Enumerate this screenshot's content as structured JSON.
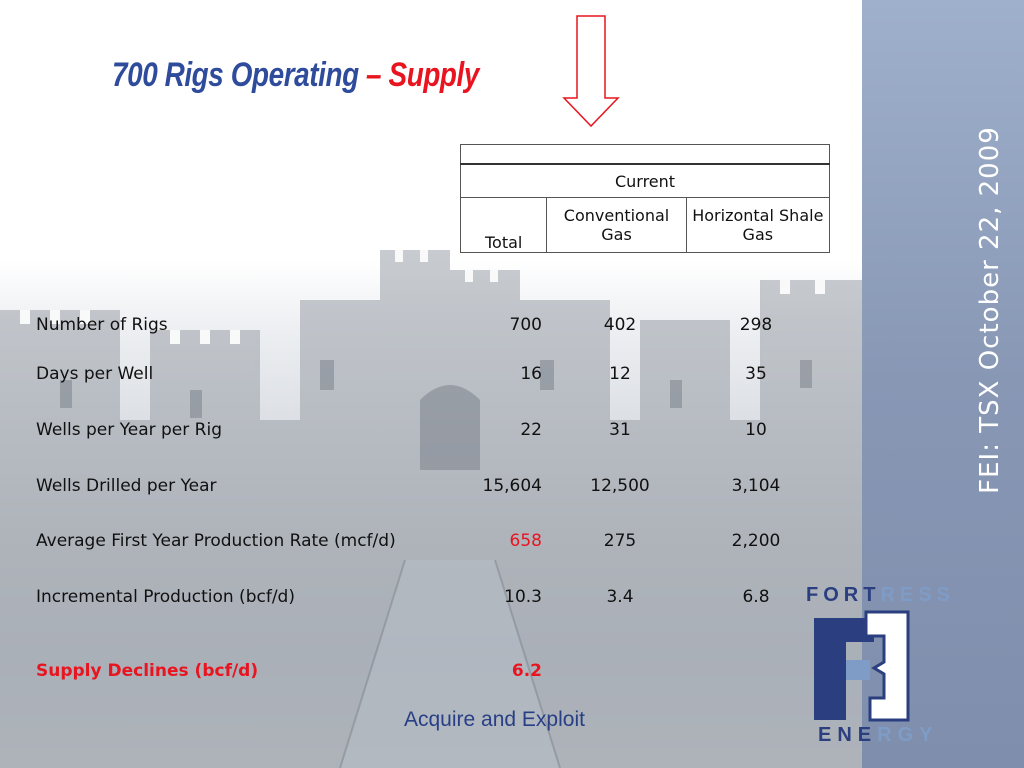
{
  "slide": {
    "title_main": "700 Rigs Operating",
    "title_dash": "–",
    "title_accent": "Supply",
    "side_text": "FEI: TSX October 22,  2009",
    "footer": "Acquire and Exploit",
    "logo_top_a": "FORT",
    "logo_top_b": "RESS",
    "logo_bottom_a": "ENE",
    "logo_bottom_b": "RGY",
    "colors": {
      "title_blue": "#2f4c9c",
      "accent_red": "#e8141f",
      "sidebar": "#8797b4"
    }
  },
  "table_header": {
    "group": "Current",
    "cols": [
      "Total",
      "Conventional Gas",
      "Horizontal Shale Gas"
    ]
  },
  "rows": [
    {
      "label": "Number of Rigs",
      "total": "700",
      "conv": "402",
      "shale": "298"
    },
    {
      "label": "Days per Well",
      "total": "16",
      "conv": "12",
      "shale": "35"
    },
    {
      "label": "Wells per Year per Rig",
      "total": "22",
      "conv": "31",
      "shale": "10"
    },
    {
      "label": "Wells Drilled per Year",
      "total": "15,604",
      "conv": "12,500",
      "shale": "3,104"
    },
    {
      "label": "Average First Year Production Rate (mcf/d)",
      "total": "658",
      "conv": "275",
      "shale": "2,200"
    },
    {
      "label": "Incremental Production (bcf/d)",
      "total": "10.3",
      "conv": "3.4",
      "shale": "6.8"
    },
    {
      "label": "Supply Declines (bcf/d)",
      "total": "6.2"
    }
  ],
  "icons": [
    "down-arrow-icon",
    "fortress-energy-logo"
  ]
}
